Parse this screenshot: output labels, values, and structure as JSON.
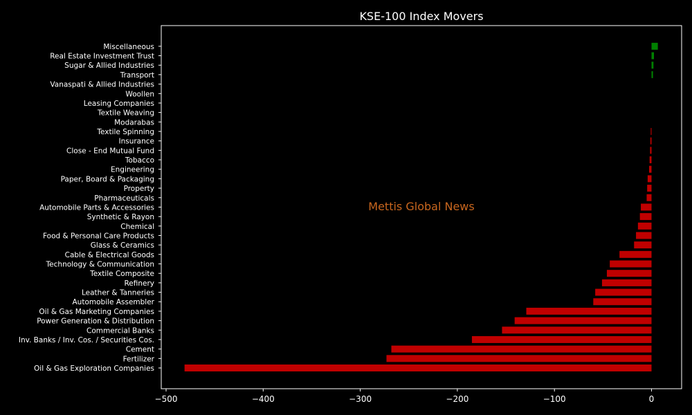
{
  "chart_data": {
    "type": "bar",
    "orientation": "horizontal",
    "title": "KSE-100 Index Movers",
    "watermark": "Mettis Global News",
    "xlabel": "",
    "ylabel": "",
    "xlim": [
      -505,
      31
    ],
    "xticks": [
      -500,
      -400,
      -300,
      -200,
      -100,
      0
    ],
    "xtick_labels": [
      "−500",
      "−400",
      "−300",
      "−200",
      "−100",
      "0"
    ],
    "grid": false,
    "legend": "none",
    "colors": {
      "positive": "#008000",
      "negative": "#c00000",
      "background": "#000000",
      "text": "#ffffff",
      "watermark": "#c8661e"
    },
    "categories": [
      "Oil & Gas Exploration Companies",
      "Fertilizer",
      "Cement",
      "Inv. Banks / Inv. Cos. / Securities Cos.",
      "Commercial Banks",
      "Power Generation & Distribution",
      "Oil & Gas Marketing Companies",
      "Automobile Assembler",
      "Leather & Tanneries",
      "Refinery",
      "Textile Composite",
      "Technology & Communication",
      "Cable & Electrical Goods",
      "Glass & Ceramics",
      "Food & Personal Care Products",
      "Chemical",
      "Synthetic & Rayon",
      "Automobile Parts & Accessories",
      "Pharmaceuticals",
      "Property",
      "Paper, Board & Packaging",
      "Engineering",
      "Tobacco",
      "Close - End Mutual Fund",
      "Insurance",
      "Textile Spinning",
      "Modarabas",
      "Textile Weaving",
      "Leasing Companies",
      "Woollen",
      "Vanaspati & Allied Industries",
      "Transport",
      "Sugar & Allied Industries",
      "Real Estate Investment Trust",
      "Miscellaneous"
    ],
    "values": [
      -481,
      -273,
      -268,
      -185,
      -154,
      -141,
      -129,
      -60,
      -58,
      -51,
      -46,
      -43,
      -33,
      -18,
      -16,
      -14,
      -12,
      -11,
      -5,
      -4.5,
      -4,
      -2.5,
      -2,
      -1.5,
      -1.2,
      -0.8,
      0,
      0,
      0,
      0,
      0,
      1.5,
      2,
      2.5,
      6.5
    ]
  }
}
